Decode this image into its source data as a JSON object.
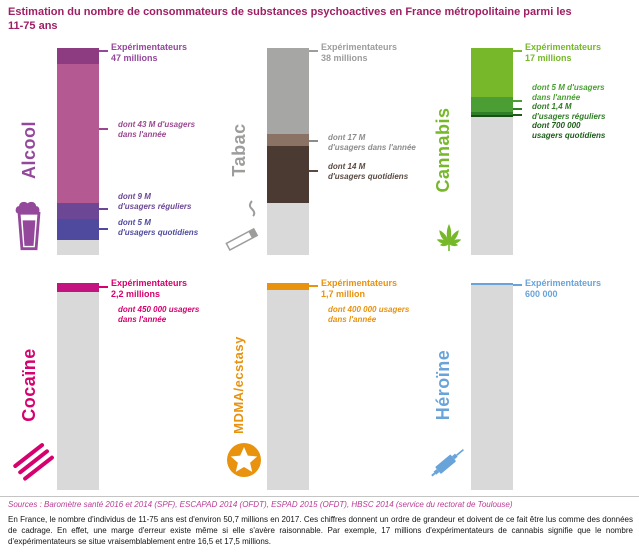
{
  "title": "Estimation du nombre de consommateurs de substances psychoactives en France métropolitaine parmi les 11-75 ans",
  "title_color": "#9e1f63",
  "sources": "Sources : Baromètre santé 2016 et 2014 (SPF), ESCAPAD 2014 (OFDT), ESPAD 2015 (OFDT), HBSC 2014 (service du rectorat de Toulouse)",
  "sources_color": "#bb3a96",
  "footnote": "En France, le nombre d'individus de 11-75 ans est d'environ 50,7 millions en 2017. Ces chiffres donnent un ordre de grandeur et doivent de ce fait être lus comme des données de cadrage. En effet, une marge d'erreur existe même si elle s'avère raisonnable. Par exemple, 17 millions d'expérimentateurs de cannabis signifie que le nombre d'expérimentateurs se situe vraisemblablement entre 16,5 et 17,5 millions.",
  "chart_data": {
    "type": "bar",
    "title": "Estimation du nombre de consommateurs de substances psychoactives en France métropolitaine parmi les 11-75 ans",
    "unit": "millions de personnes",
    "population_total_millions": 50.7,
    "remainder_color": "#d9d9d9",
    "substances": [
      {
        "name": "Alcool",
        "icon": "beer-glass-icon",
        "label_color": "#93489b",
        "values_millions": {
          "experimentateurs": 47,
          "usagers_dans_l_annee": 43,
          "usagers_reguliers": 9,
          "usagers_quotidiens": 5
        },
        "experimenters_label": "Expérimentateurs\n47 millions",
        "detail_labels": [
          "dont 43 M d'usagers\ndans l'année",
          "dont 9 M\nd'usagers réguliers",
          "dont 5 M\nd'usagers quotidiens"
        ],
        "detail_colors": [
          "#9c4690",
          "#6c4796",
          "#4f4a9e"
        ],
        "segments": [
          {
            "label": "expérimentateurs seulement",
            "value_millions": 4,
            "color": "#8d3c82"
          },
          {
            "label": "usagers dans l'année",
            "value_millions": 34,
            "color": "#b45992"
          },
          {
            "label": "usagers réguliers",
            "value_millions": 4,
            "color": "#6c4796"
          },
          {
            "label": "usagers quotidiens",
            "value_millions": 5,
            "color": "#4f4a9e"
          }
        ]
      },
      {
        "name": "Tabac",
        "icon": "cigarette-icon",
        "label_color": "#9d9d9c",
        "values_millions": {
          "experimentateurs": 38,
          "usagers_dans_l_annee": 17,
          "usagers_quotidiens": 14
        },
        "experimenters_label": "Expérimentateurs\n38 millions",
        "detail_labels": [
          "dont 17 M\nd'usagers dans l'année",
          "dont 14 M\nd'usagers quotidiens"
        ],
        "detail_colors": [
          "#8c8c8b",
          "#5a4a41"
        ],
        "segments": [
          {
            "label": "expérimentateurs seulement",
            "value_millions": 21,
            "color": "#a6a6a5"
          },
          {
            "label": "usagers dans l'année",
            "value_millions": 3,
            "color": "#8a7265"
          },
          {
            "label": "usagers quotidiens",
            "value_millions": 14,
            "color": "#4b3a31"
          }
        ]
      },
      {
        "name": "Cannabis",
        "icon": "cannabis-leaf-icon",
        "label_color": "#76b82a",
        "values_millions": {
          "experimentateurs": 17,
          "usagers_dans_l_annee": 5,
          "usagers_reguliers": 1.4,
          "usagers_quotidiens": 0.7
        },
        "experimenters_label": "Expérimentateurs\n17 millions",
        "detail_labels": [
          "dont 5 M d'usagers\ndans l'année",
          "dont 1,4 M\nd'usagers réguliers",
          "dont 700 000\nusagers quotidiens"
        ],
        "detail_colors": [
          "#4a9e33",
          "#2f7d26",
          "#1d5c19"
        ],
        "segments": [
          {
            "label": "expérimentateurs seulement",
            "value_millions": 12,
            "color": "#76b82a"
          },
          {
            "label": "usagers dans l'année",
            "value_millions": 3.6,
            "color": "#4a9e33"
          },
          {
            "label": "usagers réguliers",
            "value_millions": 0.7,
            "color": "#2f7d26"
          },
          {
            "label": "usagers quotidiens",
            "value_millions": 0.7,
            "color": "#174f14"
          }
        ]
      },
      {
        "name": "Cocaïne",
        "icon": "cocaine-lines-icon",
        "label_color": "#d6006e",
        "values_millions": {
          "experimentateurs": 2.2,
          "usagers_dans_l_annee": 0.45
        },
        "experimenters_label": "Expérimentateurs\n2,2 millions",
        "detail_labels": [
          "dont 450 000 usagers\ndans l'année"
        ],
        "detail_colors": [
          "#d6006e"
        ],
        "segments": [
          {
            "label": "expérimentateurs",
            "value_millions": 2.2,
            "color": "#c4137e"
          }
        ]
      },
      {
        "name": "MDMA/ecstasy",
        "icon": "ecstasy-star-icon",
        "label_color": "#e8920e",
        "values_millions": {
          "experimentateurs": 1.7,
          "usagers_dans_l_annee": 0.4
        },
        "experimenters_label": "Expérimentateurs\n1,7 million",
        "detail_labels": [
          "dont 400 000 usagers\ndans l'année"
        ],
        "detail_colors": [
          "#e8920e"
        ],
        "segments": [
          {
            "label": "expérimentateurs",
            "value_millions": 1.7,
            "color": "#e8920e"
          }
        ]
      },
      {
        "name": "Héroïne",
        "icon": "syringe-icon",
        "label_color": "#68a3d9",
        "values_millions": {
          "experimentateurs": 0.6
        },
        "experimenters_label": "Expérimentateurs\n600 000",
        "detail_labels": [],
        "detail_colors": [],
        "segments": [
          {
            "label": "expérimentateurs",
            "value_millions": 0.6,
            "color": "#68a3d9"
          }
        ]
      }
    ]
  }
}
